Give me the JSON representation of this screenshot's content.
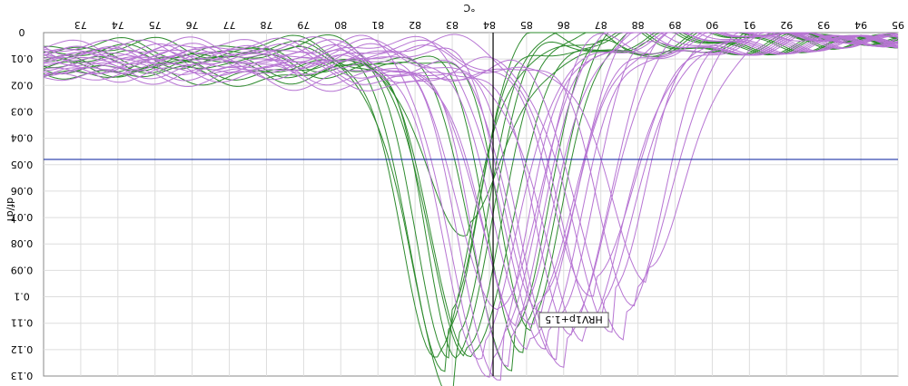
{
  "chart_data": {
    "type": "line",
    "orientation": "mirrored-flipped",
    "title": "",
    "xlabel": "°C",
    "ylabel": "df/dT",
    "xlim": [
      72,
      95
    ],
    "ylim": [
      0,
      0.13
    ],
    "x_ticks": [
      "73",
      "74",
      "75",
      "76",
      "77",
      "78",
      "79",
      "80",
      "81",
      "82",
      "83",
      "84",
      "85",
      "86",
      "87",
      "88",
      "89",
      "90",
      "91",
      "92",
      "93",
      "94",
      "95"
    ],
    "y_ticks": [
      "0",
      "0.01",
      "0.02",
      "0.03",
      "0.04",
      "0.05",
      "0.06",
      "0.07",
      "0.08",
      "0.09",
      "0.1",
      "0.11",
      "0.12",
      "0.13"
    ],
    "grid": true,
    "threshold": {
      "y": 0.048,
      "color": "#1f35a8"
    },
    "cursor": {
      "x": 84.1,
      "label": "HRV1p+1.5"
    },
    "colors": {
      "green": "#2e8b2e",
      "purple": "#b775d3",
      "grid": "#dddddd"
    },
    "series": [
      {
        "color_key": "green",
        "tm": 82.6,
        "peak": 0.118,
        "width": 0.95
      },
      {
        "color_key": "green",
        "tm": 82.8,
        "peak": 0.11,
        "width": 0.9
      },
      {
        "color_key": "green",
        "tm": 83.0,
        "peak": 0.122,
        "width": 1.0
      },
      {
        "color_key": "green",
        "tm": 83.1,
        "peak": 0.107,
        "width": 0.85
      },
      {
        "color_key": "green",
        "tm": 83.3,
        "peak": 0.115,
        "width": 0.95
      },
      {
        "color_key": "green",
        "tm": 83.5,
        "peak": 0.121,
        "width": 1.0
      },
      {
        "color_key": "green",
        "tm": 83.4,
        "peak": 0.07,
        "width": 1.1
      },
      {
        "color_key": "green",
        "tm": 82.9,
        "peak": 0.104,
        "width": 0.8
      },
      {
        "color_key": "green",
        "tm": 84.6,
        "peak": 0.112,
        "width": 0.95
      },
      {
        "color_key": "green",
        "tm": 84.9,
        "peak": 0.106,
        "width": 0.9
      },
      {
        "color_key": "green",
        "tm": 85.1,
        "peak": 0.1,
        "width": 0.85
      },
      {
        "color_key": "purple",
        "tm": 83.8,
        "peak": 0.117,
        "width": 1.0
      },
      {
        "color_key": "purple",
        "tm": 84.0,
        "peak": 0.121,
        "width": 1.05
      },
      {
        "color_key": "purple",
        "tm": 84.3,
        "peak": 0.112,
        "width": 1.0
      },
      {
        "color_key": "purple",
        "tm": 84.5,
        "peak": 0.108,
        "width": 0.95
      },
      {
        "color_key": "purple",
        "tm": 84.7,
        "peak": 0.099,
        "width": 1.0
      },
      {
        "color_key": "purple",
        "tm": 85.0,
        "peak": 0.115,
        "width": 1.1
      },
      {
        "color_key": "purple",
        "tm": 85.2,
        "peak": 0.107,
        "width": 1.0
      },
      {
        "color_key": "purple",
        "tm": 85.5,
        "peak": 0.112,
        "width": 1.05
      },
      {
        "color_key": "purple",
        "tm": 85.8,
        "peak": 0.104,
        "width": 1.0
      },
      {
        "color_key": "purple",
        "tm": 86.0,
        "peak": 0.11,
        "width": 1.1
      },
      {
        "color_key": "purple",
        "tm": 86.2,
        "peak": 0.101,
        "width": 1.0
      },
      {
        "color_key": "purple",
        "tm": 86.5,
        "peak": 0.108,
        "width": 1.1
      },
      {
        "color_key": "purple",
        "tm": 86.8,
        "peak": 0.097,
        "width": 1.0
      },
      {
        "color_key": "purple",
        "tm": 87.0,
        "peak": 0.103,
        "width": 1.05
      },
      {
        "color_key": "purple",
        "tm": 87.3,
        "peak": 0.092,
        "width": 1.0
      },
      {
        "color_key": "purple",
        "tm": 87.6,
        "peak": 0.098,
        "width": 1.1
      },
      {
        "color_key": "purple",
        "tm": 87.9,
        "peak": 0.088,
        "width": 1.0
      },
      {
        "color_key": "purple",
        "tm": 88.2,
        "peak": 0.083,
        "width": 1.05
      },
      {
        "color_key": "purple",
        "tm": 85.4,
        "peak": 0.095,
        "width": 0.95
      },
      {
        "color_key": "purple",
        "tm": 84.2,
        "peak": 0.104,
        "width": 1.0
      }
    ]
  }
}
